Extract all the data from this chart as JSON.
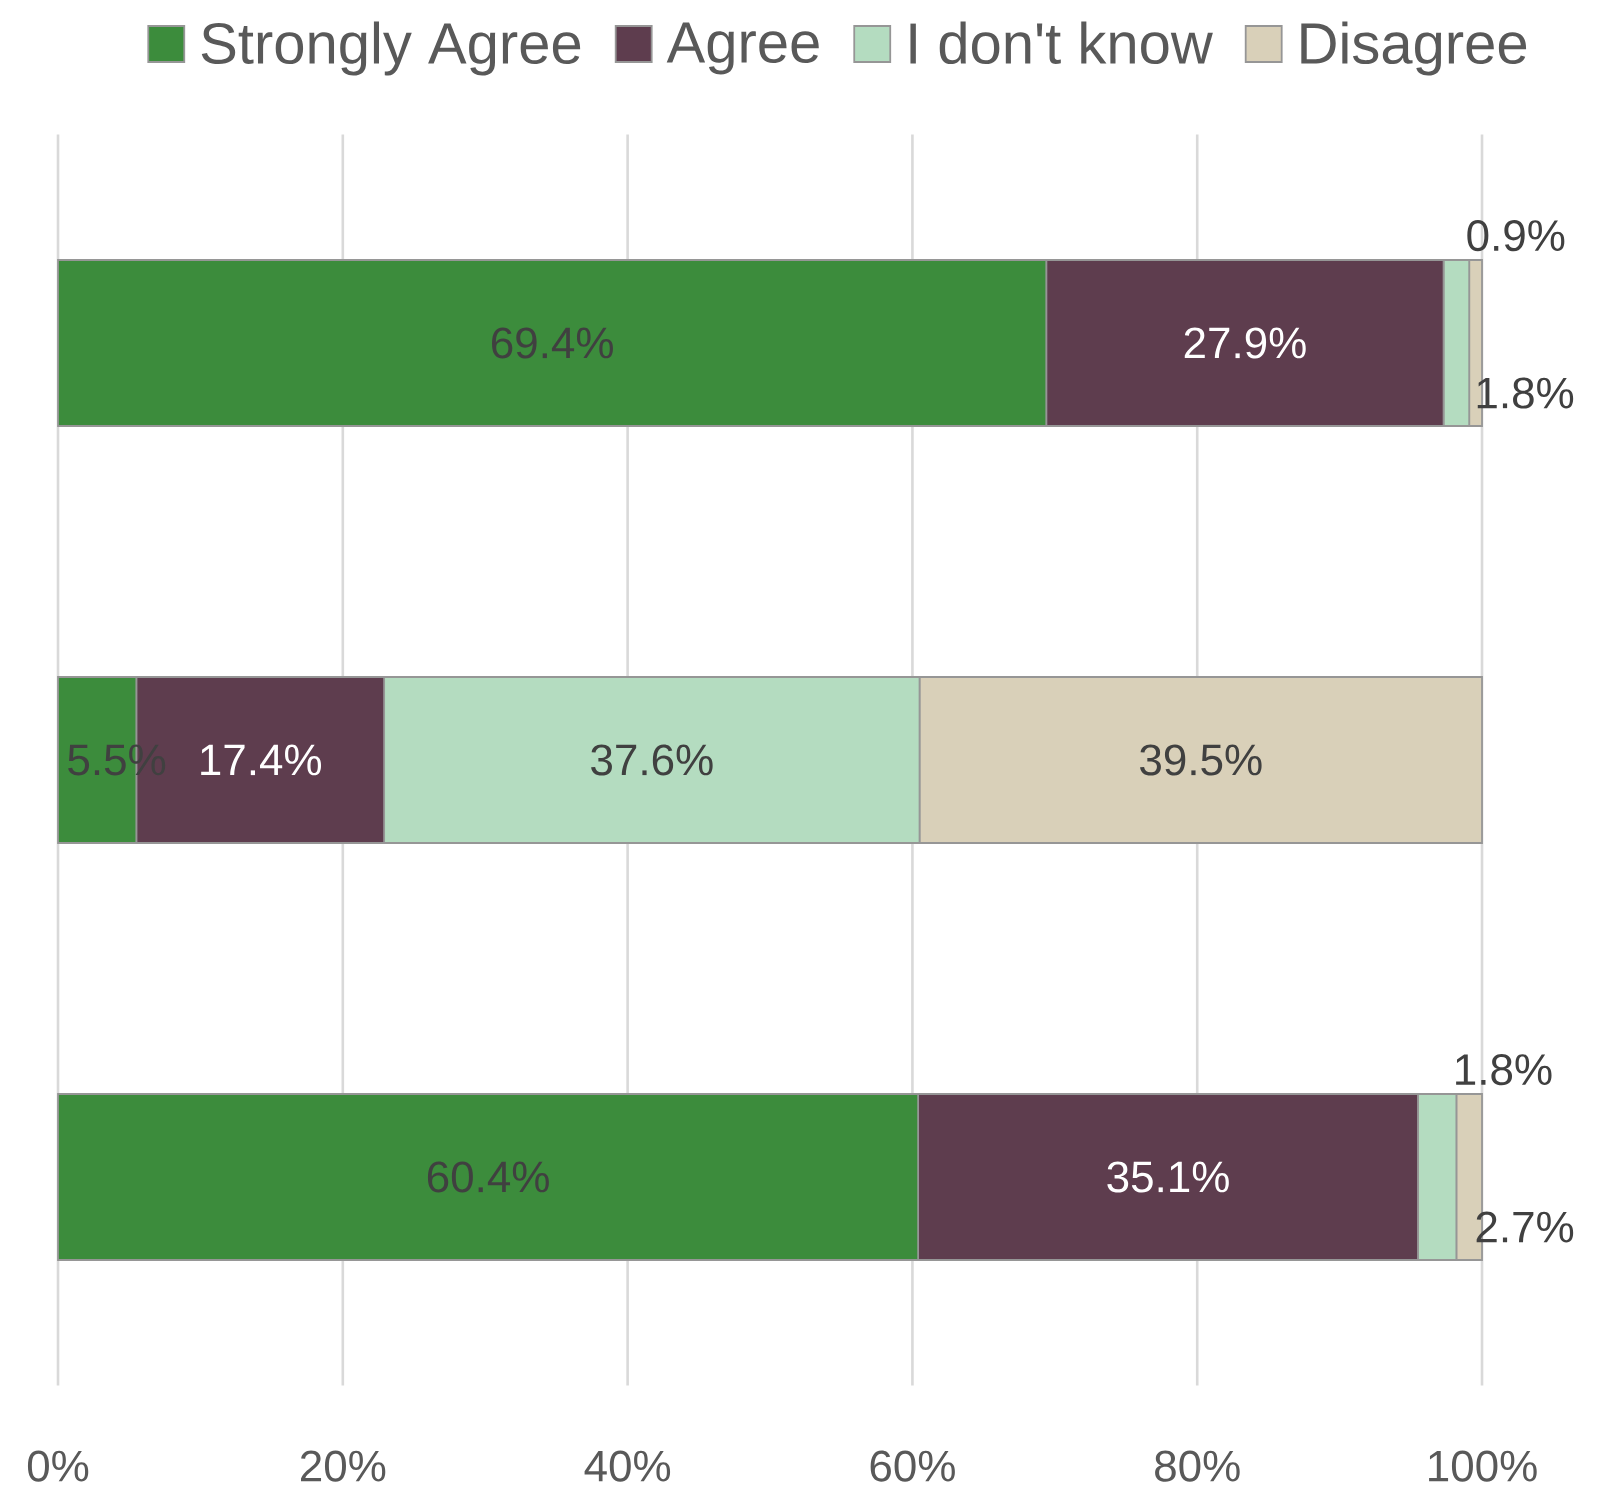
{
  "chart_data": {
    "type": "bar",
    "orientation": "horizontal",
    "stacked": true,
    "categories": [
      null,
      null,
      null
    ],
    "series": [
      {
        "name": "Strongly Agree",
        "color": "#3c8c3c",
        "values": [
          69.4,
          5.5,
          60.4
        ],
        "value_labels": [
          "69.4%",
          "5.5%",
          "60.4%"
        ]
      },
      {
        "name": "Agree",
        "color": "#5e3d4e",
        "values": [
          27.9,
          17.4,
          35.1
        ],
        "value_labels": [
          "27.9%",
          "17.4%",
          "35.1%"
        ]
      },
      {
        "name": "I don't know",
        "color": "#b4dcc0",
        "values": [
          1.8,
          37.6,
          2.7
        ],
        "value_labels": [
          "1.8%",
          "37.6%",
          "2.7%"
        ]
      },
      {
        "name": "Disagree",
        "color": "#d9d0b9",
        "values": [
          0.9,
          39.5,
          1.8
        ],
        "value_labels": [
          "0.9%",
          "39.5%",
          "1.8%"
        ]
      }
    ],
    "xlim": [
      0,
      100
    ],
    "xticks": [
      {
        "value": 0,
        "label": "0%"
      },
      {
        "value": 20,
        "label": "20%"
      },
      {
        "value": 40,
        "label": "40%"
      },
      {
        "value": 60,
        "label": "60%"
      },
      {
        "value": 80,
        "label": "80%"
      },
      {
        "value": 100,
        "label": "100%"
      }
    ],
    "grid": "x",
    "legend": "top",
    "tick_labels": "x"
  }
}
